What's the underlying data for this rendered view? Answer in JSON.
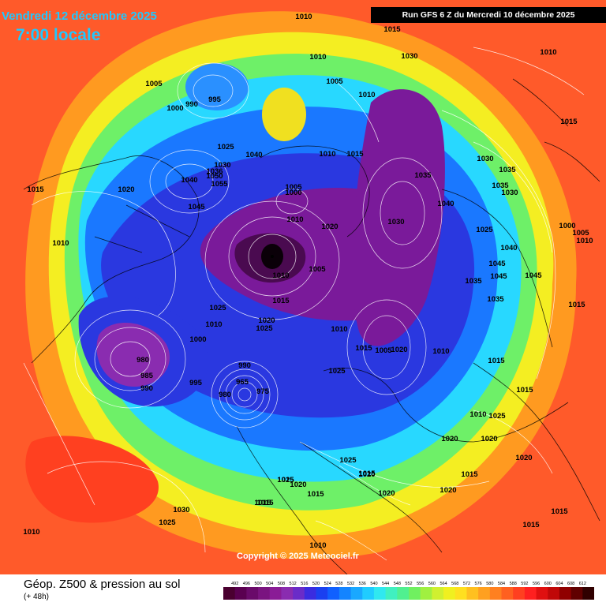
{
  "header": {
    "date": "Vendredi 12 décembre 2025",
    "local_time": "7:00 locale",
    "run_info": "Run GFS 6 Z du Mercredi 10 décembre 2025"
  },
  "map": {
    "copyright": "Copyright © 2025 Meteociel.fr",
    "pressure_labels": [
      "1010",
      "1015",
      "1010",
      "1010",
      "1005",
      "990",
      "1000",
      "995",
      "1025",
      "1040",
      "1030",
      "1036",
      "1040",
      "1050",
      "1055",
      "1045",
      "1020",
      "1015",
      "1010",
      "1005",
      "1000",
      "1010",
      "1020",
      "1030",
      "1015",
      "1010",
      "1005",
      "1010",
      "1030",
      "1035",
      "1035",
      "1030",
      "1035",
      "1040",
      "1030",
      "1025",
      "1040",
      "1045",
      "1045",
      "1035",
      "1045",
      "1035",
      "1000",
      "1005",
      "1010",
      "1015",
      "1015",
      "1005",
      "1010",
      "1015",
      "1025",
      "1010",
      "1020",
      "1025",
      "1000",
      "1015",
      "1010",
      "980",
      "985",
      "990",
      "995",
      "990",
      "965",
      "975",
      "980",
      "1025",
      "1015",
      "1010",
      "1005",
      "1020",
      "1010",
      "1015",
      "1025",
      "1020",
      "1020",
      "1020",
      "1015",
      "1020",
      "1025",
      "1025",
      "1020",
      "1015",
      "1015",
      "1020",
      "1015",
      "1020",
      "1030",
      "1025",
      "1010",
      "1015",
      "1015",
      "1015",
      "1015",
      "1010"
    ]
  },
  "footer": {
    "title": "Géop. Z500 & pression au sol",
    "subtitle": "(+ 48h)"
  },
  "scale": {
    "ticks": [
      "492",
      "496",
      "500",
      "504",
      "508",
      "512",
      "516",
      "520",
      "524",
      "528",
      "532",
      "536",
      "540",
      "544",
      "548",
      "552",
      "556",
      "560",
      "564",
      "568",
      "572",
      "576",
      "580",
      "584",
      "588",
      "592",
      "596",
      "600",
      "604",
      "608",
      "612"
    ],
    "colors": [
      "#4a0030",
      "#5a0050",
      "#6a0a6a",
      "#7a1480",
      "#8a1c96",
      "#8a2cb0",
      "#6a2cc8",
      "#3a2ce0",
      "#1a40f0",
      "#1060ff",
      "#1484ff",
      "#1aa8ff",
      "#20ccff",
      "#30e8f0",
      "#40f0c0",
      "#50f090",
      "#70f060",
      "#a0f040",
      "#d0f030",
      "#f0f020",
      "#ffe020",
      "#ffc020",
      "#ffa020",
      "#ff8020",
      "#ff6020",
      "#ff4020",
      "#ff2020",
      "#e01010",
      "#c00808",
      "#900000",
      "#600000",
      "#300000"
    ]
  },
  "colors": {
    "title_blue": "#20c8ff",
    "run_box_bg": "#000000"
  }
}
